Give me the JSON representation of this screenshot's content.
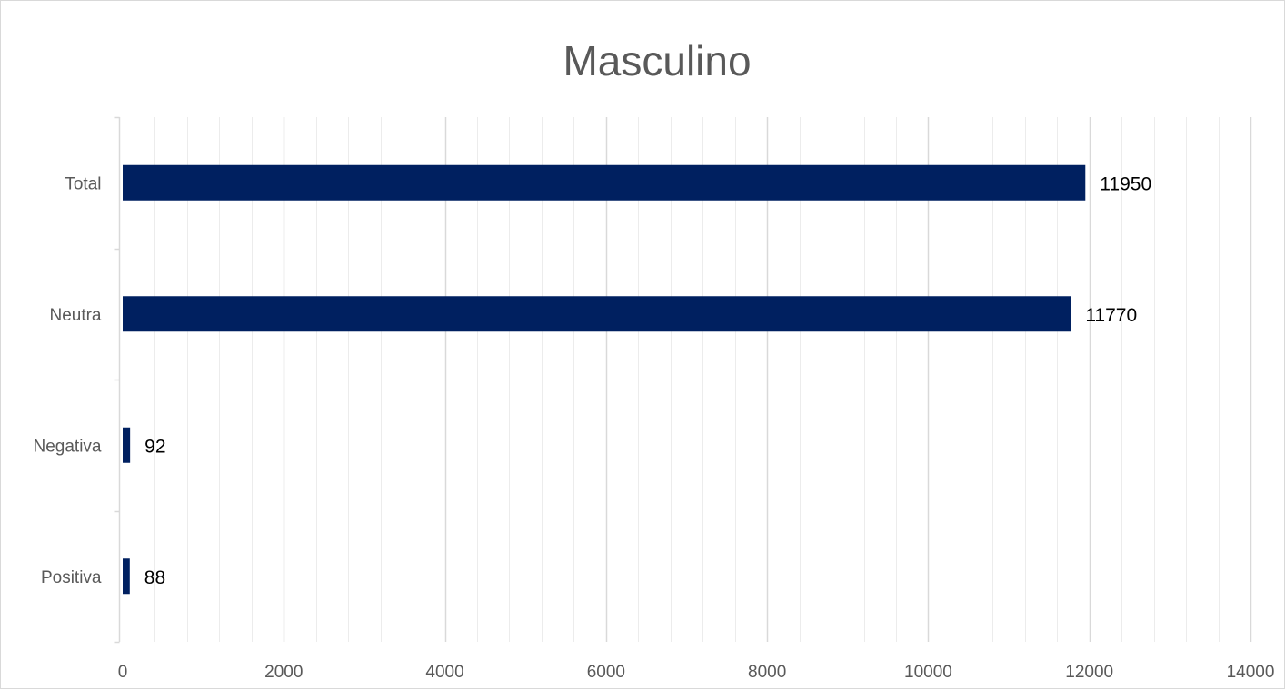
{
  "chart_data": {
    "type": "bar",
    "orientation": "horizontal",
    "title": "Masculino",
    "categories": [
      "Total",
      "Neutra",
      "Negativa",
      "Positiva"
    ],
    "values": [
      11950,
      11770,
      92,
      88
    ],
    "data_labels": [
      "11950",
      "11770",
      "92",
      "88"
    ],
    "xlim": [
      0,
      14000
    ],
    "x_ticks": [
      "0",
      "2000",
      "4000",
      "6000",
      "8000",
      "10000",
      "12000",
      "14000"
    ],
    "x_tick_values": [
      0,
      2000,
      4000,
      6000,
      8000,
      10000,
      12000,
      14000
    ],
    "minor_gridline_step": 400,
    "grid": true,
    "legend": "none",
    "colors": {
      "bar": "#002060",
      "major_grid": "#d9d9d9",
      "minor_grid": "#ececec",
      "axis": "#d9d9d9",
      "text": "#595959",
      "label": "#000000"
    }
  }
}
